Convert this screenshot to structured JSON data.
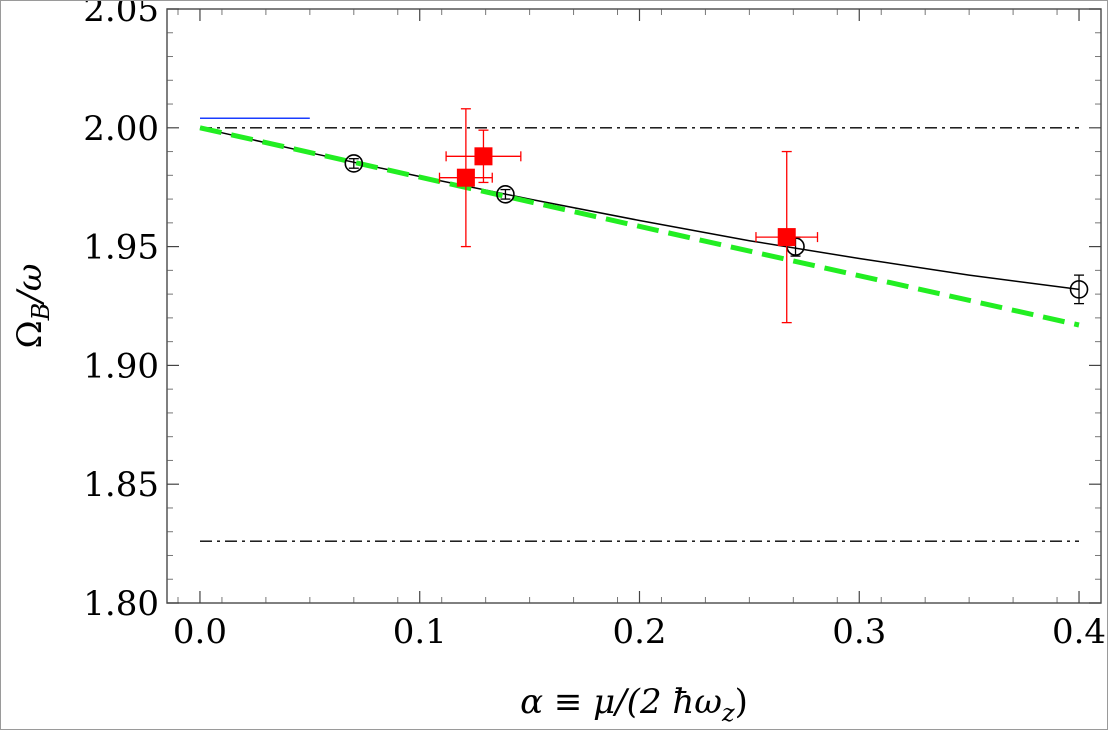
{
  "chart_data": {
    "type": "scatter",
    "xlabel": "α ≡ μ/(2 ħω",
    "xlabel_sub": "z",
    "xlabel_close": ")",
    "ylabel": "Ω",
    "ylabel_sub": "B",
    "ylabel_rest": "/ω",
    "xlim": [
      -0.015,
      0.41
    ],
    "ylim": [
      1.8,
      2.05
    ],
    "x_ticks": [
      "0.0",
      "0.1",
      "0.2",
      "0.3",
      "0.4"
    ],
    "x_tick_values": [
      0.0,
      0.1,
      0.2,
      0.3,
      0.4
    ],
    "y_ticks": [
      "1.80",
      "1.85",
      "1.90",
      "1.95",
      "2.00",
      "2.05"
    ],
    "y_tick_values": [
      1.8,
      1.85,
      1.9,
      1.95,
      2.0,
      2.05
    ],
    "series": [
      {
        "kind": "markers-squares",
        "color": "#ff0000",
        "points": [
          {
            "x": 0.121,
            "y": 1.979,
            "xerr": 0.012,
            "yerr": 0.029
          },
          {
            "x": 0.129,
            "y": 1.988,
            "xerr": 0.017,
            "yerr": 0.011
          },
          {
            "x": 0.267,
            "y": 1.954,
            "xerr": 0.014,
            "yerr": 0.036
          }
        ]
      },
      {
        "kind": "markers-open-circles",
        "color": "#000000",
        "points": [
          {
            "x": 0.07,
            "y": 1.985,
            "yerr": 0.002
          },
          {
            "x": 0.139,
            "y": 1.972,
            "yerr": 0.002
          },
          {
            "x": 0.271,
            "y": 1.95,
            "yerr": 0.004
          },
          {
            "x": 0.4,
            "y": 1.932,
            "yerr": 0.006
          }
        ]
      },
      {
        "kind": "line-solid",
        "color": "#000000",
        "x": [
          0.0,
          0.05,
          0.1,
          0.15,
          0.2,
          0.25,
          0.3,
          0.35,
          0.4
        ],
        "y": [
          2.0,
          1.9895,
          1.9795,
          1.97,
          1.961,
          1.9525,
          1.945,
          1.938,
          1.932
        ]
      },
      {
        "kind": "line-dashed",
        "color": "#22ee22",
        "x": [
          0.0,
          0.4
        ],
        "y": [
          2.0,
          1.917
        ]
      },
      {
        "kind": "line-dashdot",
        "color": "#000000",
        "x": [
          0.0,
          0.4
        ],
        "y": [
          2.0,
          2.0
        ]
      },
      {
        "kind": "line-dashdot",
        "color": "#000000",
        "x": [
          0.0,
          0.4
        ],
        "y": [
          1.826,
          1.826
        ]
      },
      {
        "kind": "line-solid",
        "color": "#1a3cff",
        "x": [
          0.0,
          0.05
        ],
        "y": [
          2.004,
          2.004
        ]
      }
    ]
  }
}
